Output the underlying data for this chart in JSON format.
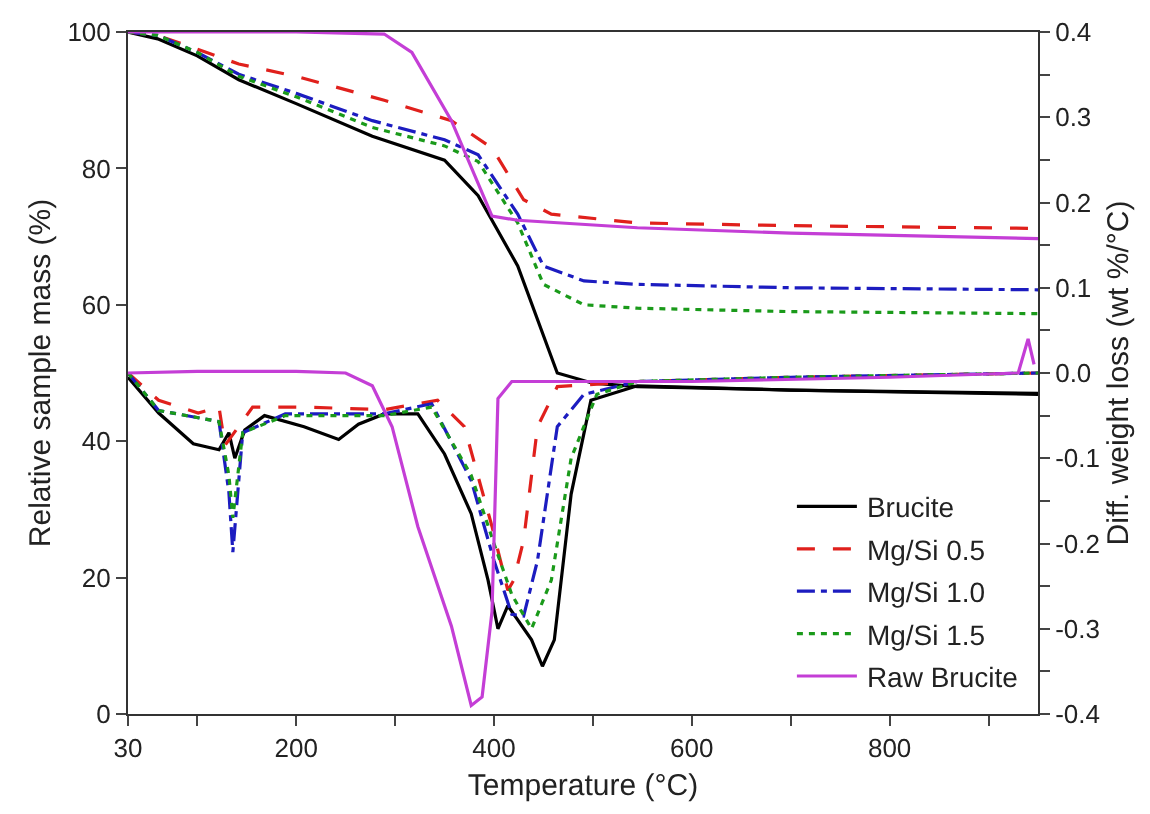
{
  "chart_data": {
    "type": "line",
    "xlabel": "Temperature (°C)",
    "ylabel": "Relative sample mass (%)",
    "y2label": "Diff. weight loss (wt %/°C)",
    "xlim": [
      30,
      950
    ],
    "xticks": [
      30,
      {
        "value": 100,
        "label": null
      },
      200,
      {
        "value": 300,
        "label": null
      },
      400,
      {
        "value": 500,
        "label": null
      },
      600,
      {
        "value": 700,
        "label": null
      },
      800,
      {
        "value": 900,
        "label": null
      }
    ],
    "ylim": [
      0,
      100
    ],
    "yticks": [
      0,
      20,
      40,
      60,
      80,
      100
    ],
    "y2lim": [
      -0.4,
      0.4
    ],
    "y2ticks": [
      -0.4,
      {
        "value": -0.35,
        "label": null
      },
      -0.3,
      {
        "value": -0.25,
        "label": null
      },
      -0.2,
      {
        "value": -0.15,
        "label": null
      },
      -0.1,
      {
        "value": -0.05,
        "label": null
      },
      {
        "value": 0,
        "label": "0.0"
      },
      {
        "value": 0.05,
        "label": null
      },
      0.1,
      {
        "value": 0.15,
        "label": null
      },
      0.2,
      {
        "value": 0.25,
        "label": null
      },
      0.3,
      {
        "value": 0.35,
        "label": null
      },
      0.4
    ],
    "grid": false,
    "legend": "bottom right",
    "marker": "none",
    "series": [
      {
        "name": "Brucite",
        "color": "#000000",
        "line_style": "solid",
        "x": [
          30,
          60,
          100,
          142,
          200,
          277,
          350,
          384,
          424,
          464,
          500,
          545,
          700,
          950
        ],
        "values": [
          100,
          99,
          96.5,
          93,
          89.5,
          84.7,
          81.2,
          76,
          65.7,
          50,
          48.5,
          48,
          47.5,
          47
        ]
      },
      {
        "name": "Mg/Si 0.5",
        "color": "#e0201c",
        "line_style": "dashed",
        "x": [
          30,
          60,
          100,
          142,
          200,
          289,
          357,
          398,
          430,
          458,
          545,
          700,
          950
        ],
        "values": [
          100,
          99.5,
          97.5,
          95.3,
          93.5,
          90,
          87,
          83,
          75.4,
          73.3,
          72,
          71.6,
          71.2
        ]
      },
      {
        "name": "Mg/Si 1.0",
        "color": "#1c1cc0",
        "line_style": "dashdot",
        "x": [
          30,
          60,
          100,
          142,
          200,
          277,
          350,
          384,
          424,
          450,
          491,
          545,
          700,
          950
        ],
        "values": [
          100,
          99.5,
          97,
          93.8,
          91,
          87,
          84.2,
          82,
          73.3,
          65.7,
          63.5,
          63,
          62.5,
          62.2
        ]
      },
      {
        "name": "Mg/Si 1.5",
        "color": "#1a9a1a",
        "line_style": "dotted",
        "x": [
          30,
          60,
          100,
          142,
          200,
          277,
          350,
          384,
          424,
          450,
          491,
          545,
          700,
          950
        ],
        "values": [
          100,
          99.5,
          97,
          93.5,
          90.5,
          86,
          83.3,
          81,
          72,
          63,
          60,
          59.5,
          59,
          58.7
        ]
      },
      {
        "name": "Raw Brucite",
        "color": "#c43ed6",
        "line_style": "solid",
        "x": [
          30,
          200,
          289,
          317,
          357,
          398,
          424,
          545,
          700,
          950
        ],
        "values": [
          100,
          100,
          99.7,
          97,
          87,
          73,
          72.4,
          71.3,
          70.5,
          69.7
        ]
      },
      {
        "axis": "y2",
        "color": "#000000",
        "line_style": "solid",
        "x": [
          30,
          61,
          96,
          122,
          132,
          138,
          148,
          168,
          208,
          243,
          263,
          289,
          323,
          350,
          377,
          394,
          404,
          414,
          438,
          449,
          461,
          478,
          498,
          545,
          700,
          950
        ],
        "values": [
          -0.005,
          -0.047,
          -0.083,
          -0.09,
          -0.07,
          -0.1,
          -0.067,
          -0.05,
          -0.063,
          -0.078,
          -0.06,
          -0.048,
          -0.048,
          -0.095,
          -0.165,
          -0.243,
          -0.3,
          -0.273,
          -0.313,
          -0.344,
          -0.313,
          -0.142,
          -0.032,
          -0.015,
          -0.02,
          -0.025
        ]
      },
      {
        "axis": "y2",
        "color": "#e0201c",
        "line_style": "dashed",
        "x": [
          30,
          61,
          101,
          122,
          128,
          156,
          208,
          289,
          343,
          370,
          398,
          414,
          420,
          430,
          444,
          464,
          545,
          700,
          950
        ],
        "values": [
          0,
          -0.032,
          -0.047,
          -0.04,
          -0.085,
          -0.04,
          -0.04,
          -0.043,
          -0.032,
          -0.063,
          -0.18,
          -0.255,
          -0.243,
          -0.196,
          -0.063,
          -0.016,
          -0.01,
          -0.005,
          0
        ]
      },
      {
        "axis": "y2",
        "color": "#1c1cc0",
        "line_style": "dashdot",
        "x": [
          30,
          61,
          122,
          132,
          136,
          146,
          189,
          289,
          337,
          377,
          400,
          418,
          430,
          444,
          464,
          491,
          545,
          700,
          950
        ],
        "values": [
          0,
          -0.044,
          -0.057,
          -0.14,
          -0.21,
          -0.07,
          -0.048,
          -0.048,
          -0.036,
          -0.126,
          -0.22,
          -0.283,
          -0.285,
          -0.22,
          -0.063,
          -0.025,
          -0.01,
          -0.005,
          0
        ]
      },
      {
        "axis": "y2",
        "color": "#1a9a1a",
        "line_style": "dotted",
        "x": [
          30,
          61,
          122,
          132,
          136,
          146,
          189,
          289,
          337,
          377,
          400,
          418,
          438,
          458,
          478,
          504,
          545,
          700,
          950
        ],
        "values": [
          0,
          -0.044,
          -0.057,
          -0.12,
          -0.17,
          -0.07,
          -0.05,
          -0.05,
          -0.04,
          -0.12,
          -0.2,
          -0.26,
          -0.3,
          -0.243,
          -0.1,
          -0.025,
          -0.01,
          -0.005,
          0
        ]
      },
      {
        "axis": "y2",
        "color": "#c43ed6",
        "line_style": "solid",
        "x": [
          30,
          100,
          200,
          250,
          277,
          297,
          323,
          357,
          377,
          388,
          398,
          404,
          418,
          600,
          800,
          930,
          940,
          946
        ],
        "values": [
          0,
          0.002,
          0.002,
          0,
          -0.015,
          -0.063,
          -0.18,
          -0.297,
          -0.39,
          -0.38,
          -0.28,
          -0.03,
          -0.01,
          -0.01,
          -0.005,
          0,
          0.04,
          0.01
        ]
      }
    ]
  }
}
